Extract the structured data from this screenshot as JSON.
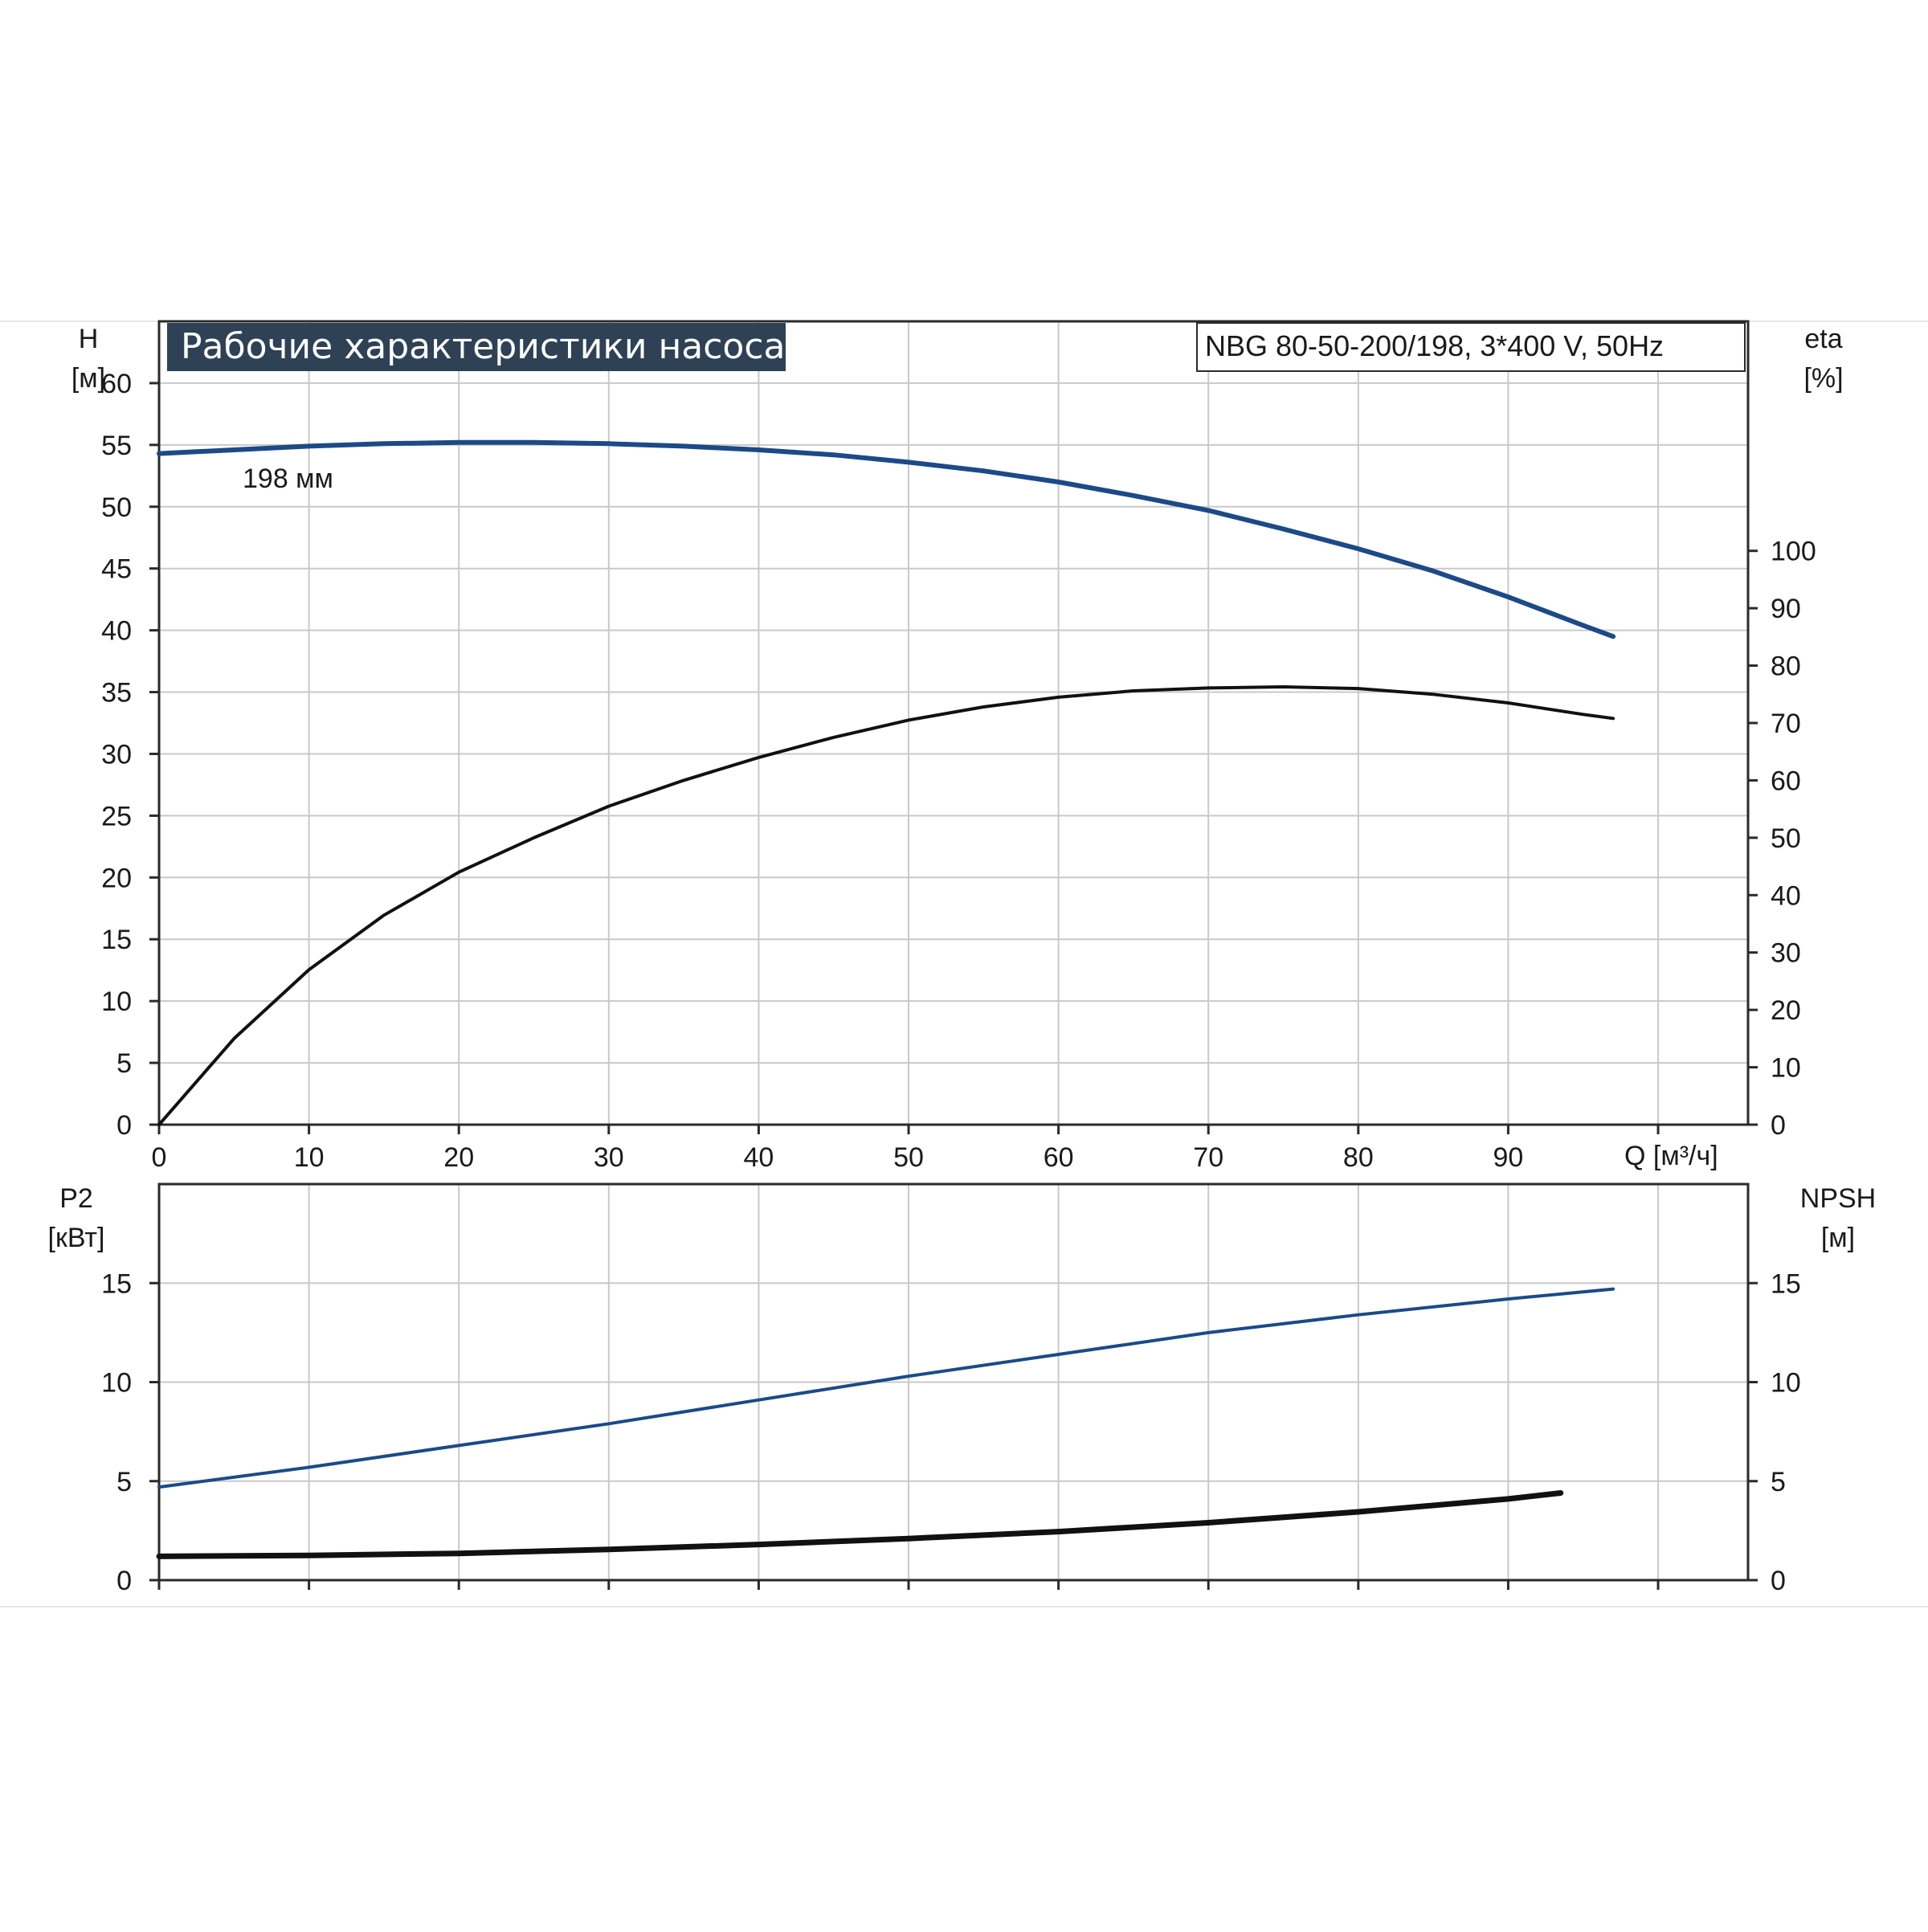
{
  "colors": {
    "blue": "#1b4a87",
    "black": "#111111",
    "title_bg": "#2e4155",
    "grid": "#c9c9c9",
    "frame": "#2a2a2a"
  },
  "top_panel": {
    "title": "Рабочие характеристики насоса",
    "model": "NBG 80-50-200/198, 3*400 V, 50Hz",
    "left_axis": {
      "label": "H",
      "unit": "[м]"
    },
    "right_axis": {
      "label": "eta",
      "unit": "[%]"
    },
    "x_axis": {
      "label": "Q [м³/ч]"
    },
    "curve_label": "198 мм"
  },
  "bottom_panel": {
    "left_axis": {
      "label": "P2",
      "unit": "[кВт]"
    },
    "right_axis": {
      "label": "NPSH",
      "unit": "[м]"
    }
  },
  "chart_data": [
    {
      "type": "line",
      "title": "Рабочие характеристики насоса",
      "subtitle": "NBG 80-50-200/198, 3*400 V, 50Hz",
      "xlabel": "Q [м³/ч]",
      "ylabel": "H [м]",
      "y2label": "eta [%]",
      "xlim": [
        0,
        106
      ],
      "ylim": [
        0,
        65
      ],
      "y2lim": [
        0,
        140
      ],
      "x_ticks": [
        0,
        10,
        20,
        30,
        40,
        50,
        60,
        70,
        80,
        90
      ],
      "y_ticks": [
        0,
        5,
        10,
        15,
        20,
        25,
        30,
        35,
        40,
        45,
        50,
        55,
        60
      ],
      "y2_ticks": [
        0,
        10,
        20,
        30,
        40,
        50,
        60,
        70,
        80,
        90,
        100
      ],
      "grid": true,
      "series": [
        {
          "name": "198 мм",
          "axis": "left",
          "color": "#1b4a87",
          "points": [
            [
              0,
              54.3
            ],
            [
              5,
              54.6
            ],
            [
              10,
              54.9
            ],
            [
              15,
              55.1
            ],
            [
              20,
              55.2
            ],
            [
              25,
              55.2
            ],
            [
              30,
              55.1
            ],
            [
              35,
              54.9
            ],
            [
              40,
              54.6
            ],
            [
              45,
              54.2
            ],
            [
              50,
              53.6
            ],
            [
              55,
              52.9
            ],
            [
              60,
              52.0
            ],
            [
              65,
              50.9
            ],
            [
              70,
              49.7
            ],
            [
              75,
              48.2
            ],
            [
              80,
              46.6
            ],
            [
              85,
              44.8
            ],
            [
              90,
              42.7
            ],
            [
              95,
              40.4
            ],
            [
              97,
              39.5
            ]
          ]
        },
        {
          "axis": "right",
          "color": "#111111",
          "points": [
            [
              0,
              0
            ],
            [
              5,
              15
            ],
            [
              10,
              27
            ],
            [
              15,
              36.5
            ],
            [
              20,
              44
            ],
            [
              25,
              50
            ],
            [
              30,
              55.5
            ],
            [
              35,
              60
            ],
            [
              40,
              64
            ],
            [
              45,
              67.5
            ],
            [
              50,
              70.5
            ],
            [
              55,
              72.8
            ],
            [
              60,
              74.5
            ],
            [
              65,
              75.6
            ],
            [
              70,
              76.1
            ],
            [
              75,
              76.3
            ],
            [
              80,
              76
            ],
            [
              85,
              75
            ],
            [
              90,
              73.5
            ],
            [
              95,
              71.5
            ],
            [
              97,
              70.8
            ]
          ]
        }
      ]
    },
    {
      "type": "line",
      "xlabel": "",
      "ylabel": "P2 [кВт]",
      "y2label": "NPSH [м]",
      "xlim": [
        0,
        106
      ],
      "ylim": [
        0,
        20
      ],
      "y2lim": [
        0,
        20
      ],
      "x_ticks": [
        0,
        10,
        20,
        30,
        40,
        50,
        60,
        70,
        80,
        90
      ],
      "y_ticks": [
        0,
        5,
        10,
        15
      ],
      "y2_ticks": [
        0,
        5,
        10,
        15
      ],
      "grid": true,
      "series": [
        {
          "axis": "left",
          "color": "#1b4a87",
          "points": [
            [
              0,
              4.7
            ],
            [
              10,
              5.7
            ],
            [
              20,
              6.8
            ],
            [
              30,
              7.9
            ],
            [
              40,
              9.1
            ],
            [
              50,
              10.3
            ],
            [
              60,
              11.4
            ],
            [
              70,
              12.5
            ],
            [
              80,
              13.4
            ],
            [
              90,
              14.2
            ],
            [
              97,
              14.7
            ]
          ]
        },
        {
          "axis": "right",
          "color": "#111111",
          "points": [
            [
              0,
              1.2
            ],
            [
              10,
              1.25
            ],
            [
              20,
              1.35
            ],
            [
              30,
              1.55
            ],
            [
              40,
              1.8
            ],
            [
              50,
              2.1
            ],
            [
              60,
              2.45
            ],
            [
              70,
              2.9
            ],
            [
              80,
              3.45
            ],
            [
              90,
              4.1
            ],
            [
              93.5,
              4.4
            ]
          ]
        }
      ]
    }
  ]
}
